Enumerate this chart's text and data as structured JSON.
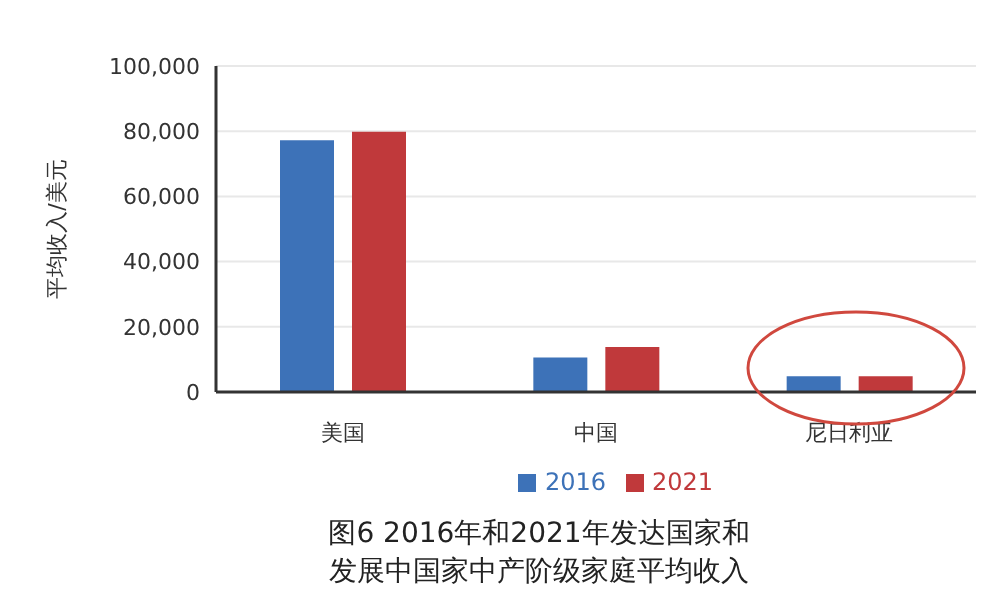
{
  "chart_data": {
    "type": "bar",
    "ylabel": "平均收入/美元",
    "categories": [
      "美国",
      "中国",
      "尼日利亚"
    ],
    "series": [
      {
        "name": "2016",
        "color": "#3d72b8",
        "values": [
          77200,
          10600,
          4800
        ]
      },
      {
        "name": "2021",
        "color": "#c0393b",
        "values": [
          79800,
          13800,
          4800
        ]
      }
    ],
    "ylim": [
      0,
      100000
    ],
    "yticks": [
      {
        "value": 0,
        "label": "0"
      },
      {
        "value": 20000,
        "label": "20,000"
      },
      {
        "value": 40000,
        "label": "40,000"
      },
      {
        "value": 60000,
        "label": "60,000"
      },
      {
        "value": 80000,
        "label": "80,000"
      },
      {
        "value": 100000,
        "label": "100,000"
      }
    ],
    "grid": "y",
    "legend": "bottom",
    "annotations": [
      "图6 2016年和2021年发达国家和",
      "发展中国家中产阶级家庭平均收入"
    ]
  }
}
